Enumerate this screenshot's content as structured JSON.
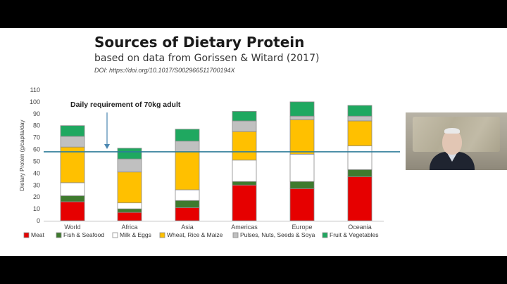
{
  "slide": {
    "title": "Sources of Dietary Protein",
    "subtitle": "based on data from Gorissen & Witard (2017)",
    "doi": "DOI: https://doi.org/10.1017/S002966511700194X"
  },
  "chart_data": {
    "type": "bar",
    "stacked": true,
    "title": "Sources of Dietary Protein",
    "xlabel": "",
    "ylabel": "Dietary Protein (g/capita/day",
    "ylim": [
      0,
      110
    ],
    "yticks": [
      0,
      10,
      20,
      30,
      40,
      50,
      60,
      70,
      80,
      90,
      100,
      110
    ],
    "grid": false,
    "legend_position": "bottom",
    "categories": [
      "World",
      "Africa",
      "Asia",
      "Americas",
      "Europe",
      "Oceania"
    ],
    "series": [
      {
        "name": "Meat",
        "color": "#e60000",
        "values": [
          16,
          7,
          11,
          30,
          27,
          37
        ]
      },
      {
        "name": "Fish & Seafood",
        "color": "#3e7a2e",
        "values": [
          5,
          3,
          6,
          3,
          6,
          6
        ]
      },
      {
        "name": "Milk & Eggs",
        "color": "#ffffff",
        "values": [
          11,
          5,
          9,
          18,
          23,
          20
        ]
      },
      {
        "name": "Wheat, Rice & Maize",
        "color": "#ffc000",
        "values": [
          30,
          26,
          32,
          24,
          29,
          21
        ]
      },
      {
        "name": "Pulses, Nuts, Seeds & Soya",
        "color": "#c0c0c0",
        "values": [
          9,
          11,
          9,
          9,
          3,
          4
        ]
      },
      {
        "name": "Fruit & Vegetables",
        "color": "#1fa860",
        "values": [
          9,
          9,
          10,
          8,
          12,
          9
        ]
      }
    ],
    "reference_line": {
      "value": 58,
      "color": "#2e7d9a"
    },
    "annotation": {
      "text": "Daily requirement of 70kg adult"
    }
  }
}
